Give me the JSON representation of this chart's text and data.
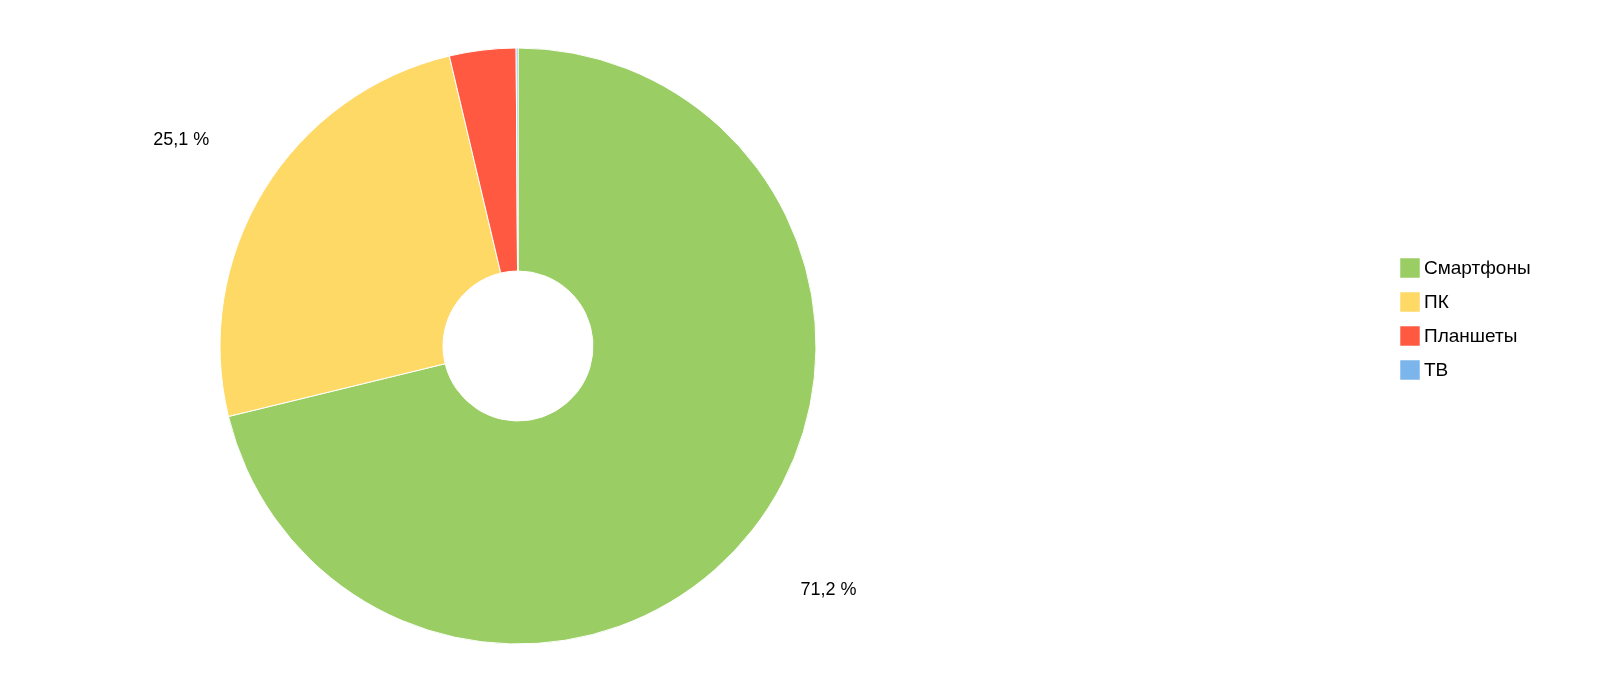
{
  "chart_data": {
    "type": "donut",
    "categories": [
      "Смартфоны",
      "ПК",
      "Планшеты",
      "ТВ"
    ],
    "values": [
      71.2,
      25.1,
      3.6,
      0.1
    ],
    "colors": [
      "#9ace64",
      "#ffd966",
      "#ff5a41",
      "#7cb5ec"
    ],
    "value_labels": [
      "71,2 %",
      "25,1 %",
      null,
      null
    ],
    "legend": "right"
  }
}
